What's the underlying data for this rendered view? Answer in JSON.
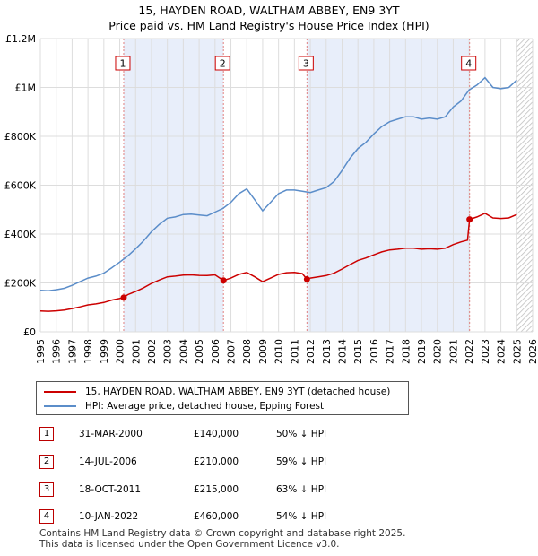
{
  "header": {
    "title": "15, HAYDEN ROAD, WALTHAM ABBEY, EN9 3YT",
    "subtitle": "Price paid vs. HM Land Registry's House Price Index (HPI)"
  },
  "chart_data": {
    "type": "line",
    "title": "15, HAYDEN ROAD, WALTHAM ABBEY, EN9 3YT",
    "subtitle": "Price paid vs. HM Land Registry's House Price Index (HPI)",
    "xlim": [
      1995,
      2026
    ],
    "ylim": [
      0,
      1200000
    ],
    "y_ticks": [
      0,
      200000,
      400000,
      600000,
      800000,
      1000000,
      1200000
    ],
    "y_tick_labels": [
      "£0",
      "£200K",
      "£400K",
      "£600K",
      "£800K",
      "£1M",
      "£1.2M"
    ],
    "x_ticks": [
      1995,
      1996,
      1997,
      1998,
      1999,
      2000,
      2001,
      2002,
      2003,
      2004,
      2005,
      2006,
      2007,
      2008,
      2009,
      2010,
      2011,
      2012,
      2013,
      2014,
      2015,
      2016,
      2017,
      2018,
      2019,
      2020,
      2021,
      2022,
      2023,
      2024,
      2025,
      2026
    ],
    "x_tick_labels": [
      "1995",
      "1996",
      "1997",
      "1998",
      "1999",
      "2000",
      "2001",
      "2002",
      "2003",
      "2004",
      "2005",
      "2006",
      "2007",
      "2008",
      "2009",
      "2010",
      "2011",
      "2012",
      "2013",
      "2014",
      "2015",
      "2016",
      "2017",
      "2018",
      "2019",
      "2020",
      "2021",
      "2022",
      "2023",
      "2024",
      "2025",
      "2026"
    ],
    "grid": true,
    "series": [
      {
        "name": "HPI: Average price, detached house, Epping Forest",
        "color": "#5b8dc9",
        "points": [
          [
            1995.0,
            170000
          ],
          [
            1995.5,
            168000
          ],
          [
            1996.0,
            172000
          ],
          [
            1996.5,
            178000
          ],
          [
            1997.0,
            190000
          ],
          [
            1997.5,
            205000
          ],
          [
            1998.0,
            220000
          ],
          [
            1998.5,
            228000
          ],
          [
            1999.0,
            240000
          ],
          [
            1999.5,
            262000
          ],
          [
            2000.0,
            285000
          ],
          [
            2000.5,
            310000
          ],
          [
            2001.0,
            340000
          ],
          [
            2001.5,
            372000
          ],
          [
            2002.0,
            410000
          ],
          [
            2002.5,
            440000
          ],
          [
            2003.0,
            465000
          ],
          [
            2003.5,
            470000
          ],
          [
            2004.0,
            480000
          ],
          [
            2004.5,
            482000
          ],
          [
            2005.0,
            478000
          ],
          [
            2005.5,
            475000
          ],
          [
            2006.0,
            490000
          ],
          [
            2006.5,
            505000
          ],
          [
            2007.0,
            530000
          ],
          [
            2007.5,
            565000
          ],
          [
            2008.0,
            585000
          ],
          [
            2008.5,
            540000
          ],
          [
            2009.0,
            495000
          ],
          [
            2009.5,
            530000
          ],
          [
            2010.0,
            565000
          ],
          [
            2010.5,
            580000
          ],
          [
            2011.0,
            580000
          ],
          [
            2011.5,
            575000
          ],
          [
            2012.0,
            570000
          ],
          [
            2012.5,
            580000
          ],
          [
            2013.0,
            590000
          ],
          [
            2013.5,
            615000
          ],
          [
            2014.0,
            660000
          ],
          [
            2014.5,
            710000
          ],
          [
            2015.0,
            750000
          ],
          [
            2015.5,
            775000
          ],
          [
            2016.0,
            810000
          ],
          [
            2016.5,
            840000
          ],
          [
            2017.0,
            860000
          ],
          [
            2017.5,
            870000
          ],
          [
            2018.0,
            880000
          ],
          [
            2018.5,
            880000
          ],
          [
            2019.0,
            870000
          ],
          [
            2019.5,
            875000
          ],
          [
            2020.0,
            870000
          ],
          [
            2020.5,
            880000
          ],
          [
            2021.0,
            920000
          ],
          [
            2021.5,
            945000
          ],
          [
            2022.0,
            990000
          ],
          [
            2022.5,
            1010000
          ],
          [
            2023.0,
            1040000
          ],
          [
            2023.5,
            1000000
          ],
          [
            2024.0,
            995000
          ],
          [
            2024.5,
            1000000
          ],
          [
            2025.0,
            1030000
          ]
        ]
      },
      {
        "name": "15, HAYDEN ROAD, WALTHAM ABBEY, EN9 3YT (detached house)",
        "color": "#cc0000",
        "points": [
          [
            1995.0,
            85000
          ],
          [
            1995.5,
            84000
          ],
          [
            1996.0,
            86000
          ],
          [
            1996.5,
            89000
          ],
          [
            1997.0,
            95000
          ],
          [
            1997.5,
            102000
          ],
          [
            1998.0,
            110000
          ],
          [
            1998.5,
            114000
          ],
          [
            1999.0,
            120000
          ],
          [
            1999.5,
            130000
          ],
          [
            2000.25,
            140000
          ],
          [
            2000.5,
            152000
          ],
          [
            2001.0,
            165000
          ],
          [
            2001.5,
            180000
          ],
          [
            2002.0,
            198000
          ],
          [
            2002.5,
            212000
          ],
          [
            2003.0,
            225000
          ],
          [
            2003.5,
            228000
          ],
          [
            2004.0,
            232000
          ],
          [
            2004.5,
            233000
          ],
          [
            2005.0,
            231000
          ],
          [
            2005.5,
            230000
          ],
          [
            2006.0,
            233000
          ],
          [
            2006.53,
            210000
          ],
          [
            2007.0,
            220000
          ],
          [
            2007.5,
            235000
          ],
          [
            2008.0,
            243000
          ],
          [
            2008.5,
            225000
          ],
          [
            2009.0,
            205000
          ],
          [
            2009.5,
            220000
          ],
          [
            2010.0,
            235000
          ],
          [
            2010.5,
            242000
          ],
          [
            2011.0,
            243000
          ],
          [
            2011.5,
            238000
          ],
          [
            2011.79,
            215000
          ],
          [
            2012.0,
            220000
          ],
          [
            2012.5,
            225000
          ],
          [
            2013.0,
            230000
          ],
          [
            2013.5,
            240000
          ],
          [
            2014.0,
            257000
          ],
          [
            2014.5,
            275000
          ],
          [
            2015.0,
            292000
          ],
          [
            2015.5,
            302000
          ],
          [
            2016.0,
            315000
          ],
          [
            2016.5,
            327000
          ],
          [
            2017.0,
            335000
          ],
          [
            2017.5,
            338000
          ],
          [
            2018.0,
            342000
          ],
          [
            2018.5,
            342000
          ],
          [
            2019.0,
            338000
          ],
          [
            2019.5,
            340000
          ],
          [
            2020.0,
            338000
          ],
          [
            2020.5,
            342000
          ],
          [
            2021.0,
            357000
          ],
          [
            2021.5,
            368000
          ],
          [
            2021.9,
            375000
          ],
          [
            2022.03,
            460000
          ],
          [
            2022.5,
            470000
          ],
          [
            2023.0,
            485000
          ],
          [
            2023.5,
            466000
          ],
          [
            2024.0,
            464000
          ],
          [
            2024.5,
            466000
          ],
          [
            2025.0,
            480000
          ]
        ]
      }
    ],
    "sales": [
      {
        "n": "1",
        "x": 2000.25,
        "y": 140000
      },
      {
        "n": "2",
        "x": 2006.53,
        "y": 210000
      },
      {
        "n": "3",
        "x": 2011.79,
        "y": 215000
      },
      {
        "n": "4",
        "x": 2022.03,
        "y": 460000
      }
    ],
    "future_shade_from": 2025.0
  },
  "legend": {
    "property_label": "15, HAYDEN ROAD, WALTHAM ABBEY, EN9 3YT (detached house)",
    "hpi_label": "HPI: Average price, detached house, Epping Forest",
    "property_color": "#cc0000",
    "hpi_color": "#5b8dc9"
  },
  "sales_table": [
    {
      "n": "1",
      "date": "31-MAR-2000",
      "price": "£140,000",
      "hpi": "50% ↓ HPI"
    },
    {
      "n": "2",
      "date": "14-JUL-2006",
      "price": "£210,000",
      "hpi": "59% ↓ HPI"
    },
    {
      "n": "3",
      "date": "18-OCT-2011",
      "price": "£215,000",
      "hpi": "63% ↓ HPI"
    },
    {
      "n": "4",
      "date": "10-JAN-2022",
      "price": "£460,000",
      "hpi": "54% ↓ HPI"
    }
  ],
  "footer": {
    "line1": "Contains HM Land Registry data © Crown copyright and database right 2025.",
    "line2": "This data is licensed under the Open Government Licence v3.0."
  },
  "colors": {
    "shade": "#e8eefa",
    "grid": "#dddddd",
    "marker_border": "#cc0000"
  }
}
